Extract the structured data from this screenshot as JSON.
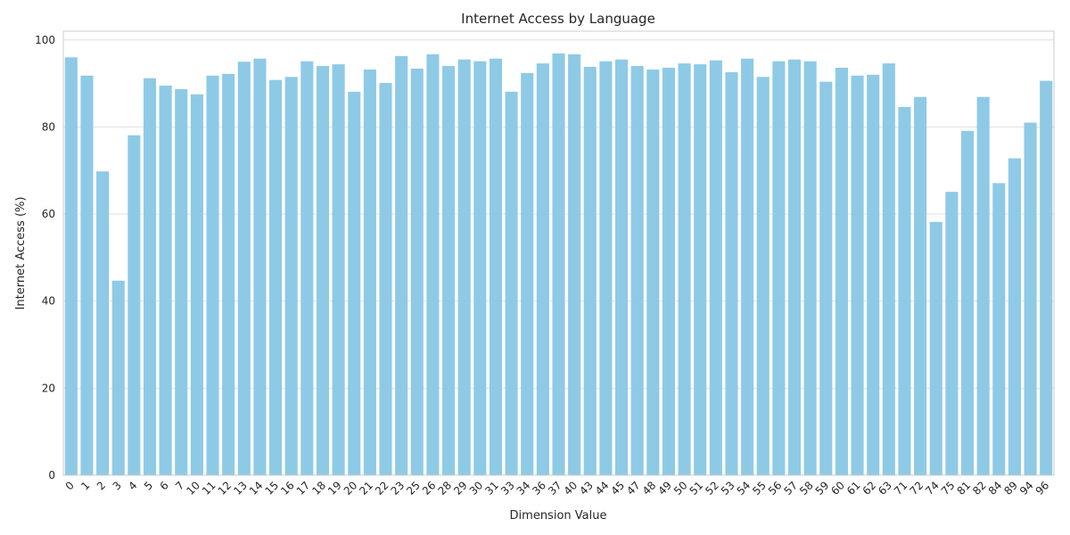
{
  "chart_data": {
    "type": "bar",
    "title": "Internet Access by Language",
    "xlabel": "Dimension Value",
    "ylabel": "Internet Access (%)",
    "ylim": [
      0,
      102
    ],
    "yticks": [
      0,
      20,
      40,
      60,
      80,
      100
    ],
    "grid": "horizontal",
    "bar_color": "#8ecae6",
    "categories": [
      "0",
      "1",
      "2",
      "3",
      "4",
      "5",
      "6",
      "7",
      "10",
      "11",
      "12",
      "13",
      "14",
      "15",
      "16",
      "17",
      "18",
      "19",
      "20",
      "21",
      "22",
      "23",
      "25",
      "26",
      "28",
      "29",
      "30",
      "31",
      "33",
      "34",
      "36",
      "37",
      "40",
      "43",
      "44",
      "45",
      "47",
      "48",
      "49",
      "50",
      "51",
      "52",
      "53",
      "54",
      "55",
      "56",
      "57",
      "58",
      "59",
      "60",
      "61",
      "62",
      "63",
      "71",
      "72",
      "74",
      "75",
      "81",
      "82",
      "84",
      "89",
      "94",
      "96"
    ],
    "values": [
      96.0,
      91.8,
      69.8,
      44.7,
      78.1,
      91.2,
      89.5,
      88.7,
      87.5,
      91.8,
      92.2,
      95.0,
      95.7,
      90.8,
      91.5,
      95.1,
      94.0,
      94.4,
      88.1,
      93.2,
      90.1,
      96.3,
      93.4,
      96.7,
      94.0,
      95.5,
      95.1,
      95.7,
      88.1,
      92.4,
      94.6,
      96.9,
      96.7,
      93.8,
      95.1,
      95.5,
      94.0,
      93.2,
      93.6,
      94.6,
      94.4,
      95.3,
      92.6,
      95.7,
      91.5,
      95.1,
      95.5,
      95.1,
      90.4,
      93.6,
      91.8,
      92.0,
      94.6,
      84.6,
      86.9,
      58.2,
      65.1,
      79.1,
      86.9,
      67.1,
      72.8,
      81.0,
      90.6
    ]
  }
}
